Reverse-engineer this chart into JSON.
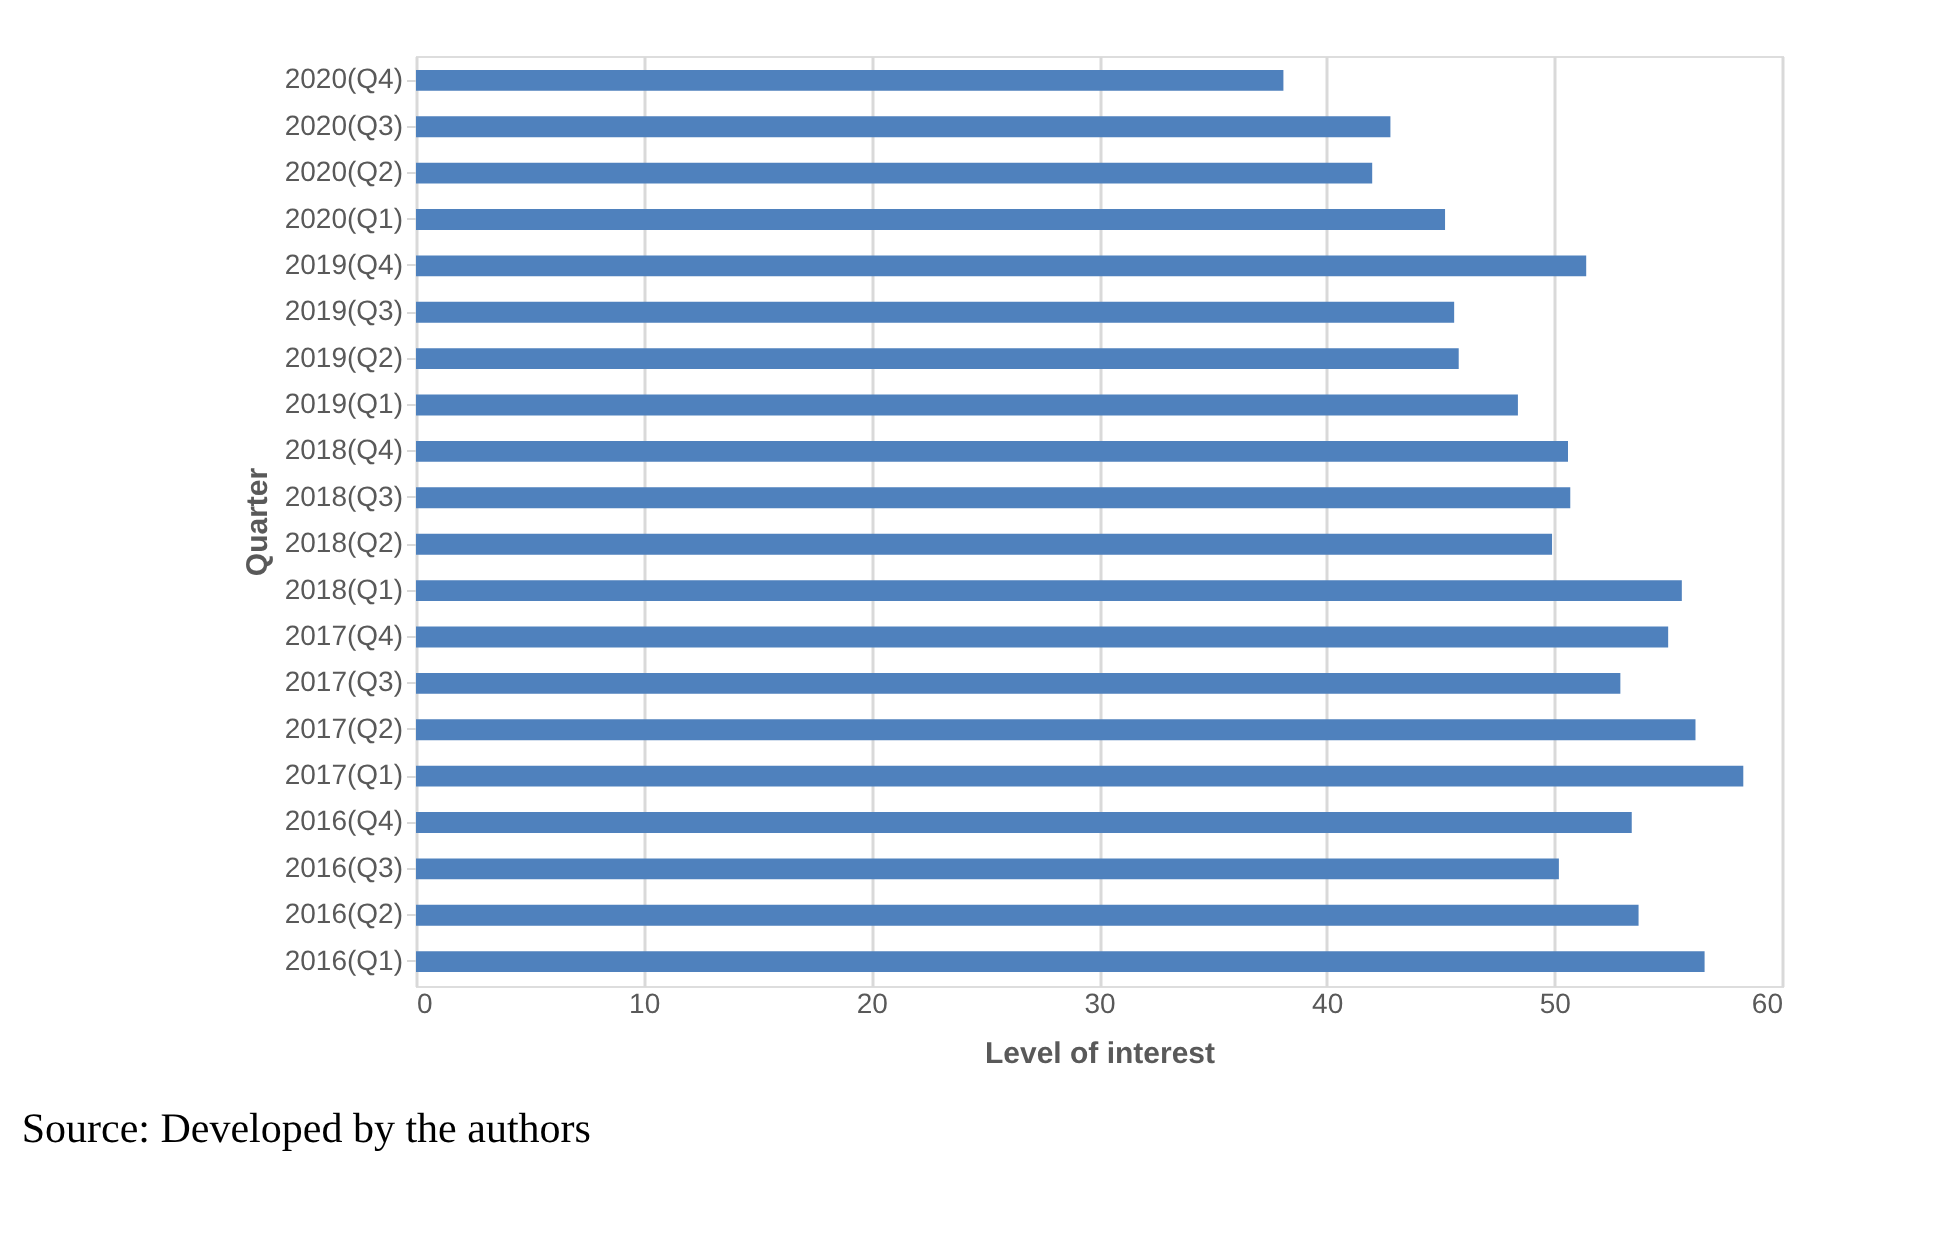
{
  "chart_data": {
    "type": "bar",
    "orientation": "horizontal",
    "xlabel": "Level of interest",
    "ylabel": "Quarter",
    "categories": [
      "2020(Q4)",
      "2020(Q3)",
      "2020(Q2)",
      "2020(Q1)",
      "2019(Q4)",
      "2019(Q3)",
      "2019(Q2)",
      "2019(Q1)",
      "2018(Q4)",
      "2018(Q3)",
      "2018(Q2)",
      "2018(Q1)",
      "2017(Q4)",
      "2017(Q3)",
      "2017(Q2)",
      "2017(Q1)",
      "2016(Q4)",
      "2016(Q3)",
      "2016(Q2)",
      "2016(Q1)"
    ],
    "values": [
      38.1,
      42.8,
      42.0,
      45.2,
      51.4,
      45.6,
      45.8,
      48.4,
      50.6,
      50.7,
      49.9,
      55.6,
      55.0,
      52.9,
      56.2,
      58.3,
      53.4,
      50.2,
      53.7,
      56.6
    ],
    "color": "#4f81bd",
    "xlim": [
      0,
      60
    ],
    "xticks": [
      0,
      10,
      20,
      30,
      40,
      50,
      60
    ],
    "grid": "x",
    "annotations": [
      "Source: Developed by the authors"
    ]
  }
}
